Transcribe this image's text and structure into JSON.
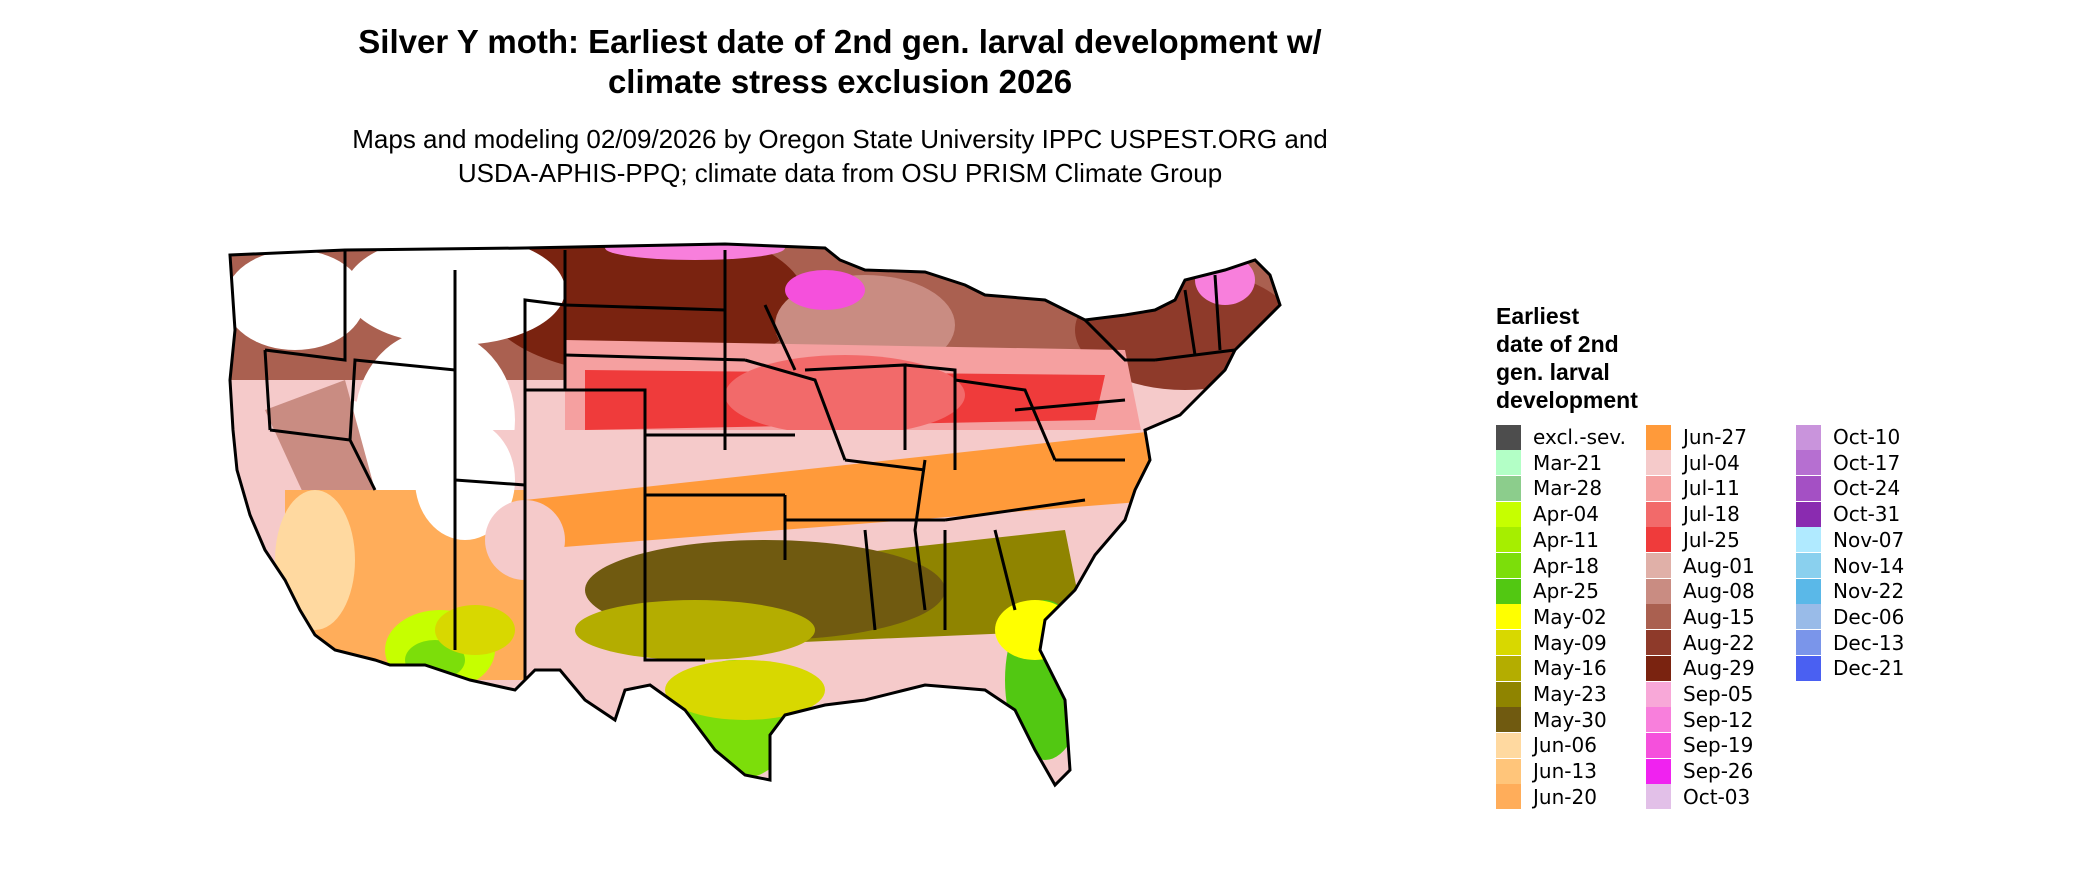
{
  "title_line1": "Silver Y moth: Earliest date of 2nd gen. larval development w/",
  "title_line2": "climate stress exclusion 2026",
  "subtitle_line1": "Maps and modeling 02/09/2026 by Oregon State University IPPC USPEST.ORG and",
  "subtitle_line2": "USDA-APHIS-PPQ; climate data from OSU PRISM Climate Group",
  "legend": {
    "title_lines": [
      "Earliest",
      "date of 2nd",
      "gen. larval",
      "development"
    ],
    "items": [
      {
        "label": "excl.-sev.",
        "color": "#4d4d4d"
      },
      {
        "label": "Mar-21",
        "color": "#b3ffc6"
      },
      {
        "label": "Mar-28",
        "color": "#8ccd8c"
      },
      {
        "label": "Apr-04",
        "color": "#c6ff00"
      },
      {
        "label": "Apr-11",
        "color": "#a6ee00"
      },
      {
        "label": "Apr-18",
        "color": "#7cde0a"
      },
      {
        "label": "Apr-25",
        "color": "#52c812"
      },
      {
        "label": "May-02",
        "color": "#ffff00"
      },
      {
        "label": "May-09",
        "color": "#d8d800"
      },
      {
        "label": "May-16",
        "color": "#b4ad00"
      },
      {
        "label": "May-23",
        "color": "#8f8400"
      },
      {
        "label": "May-30",
        "color": "#705a10"
      },
      {
        "label": "Jun-06",
        "color": "#ffd9a0"
      },
      {
        "label": "Jun-13",
        "color": "#ffc57a"
      },
      {
        "label": "Jun-20",
        "color": "#ffad5a"
      },
      {
        "label": "Jun-27",
        "color": "#ff9a3a"
      },
      {
        "label": "Jul-04",
        "color": "#f5caca"
      },
      {
        "label": "Jul-11",
        "color": "#f5a0a0"
      },
      {
        "label": "Jul-18",
        "color": "#f26a6a"
      },
      {
        "label": "Jul-25",
        "color": "#ef3b3b"
      },
      {
        "label": "Aug-01",
        "color": "#e0b0a8"
      },
      {
        "label": "Aug-08",
        "color": "#c98c82"
      },
      {
        "label": "Aug-15",
        "color": "#aa6050"
      },
      {
        "label": "Aug-22",
        "color": "#8e3a2a"
      },
      {
        "label": "Aug-29",
        "color": "#7a2310"
      },
      {
        "label": "Sep-05",
        "color": "#f8a8d8"
      },
      {
        "label": "Sep-12",
        "color": "#f87fdc"
      },
      {
        "label": "Sep-19",
        "color": "#f550dc"
      },
      {
        "label": "Sep-26",
        "color": "#f022f0"
      },
      {
        "label": "Oct-03",
        "color": "#e2c0e8"
      },
      {
        "label": "Oct-10",
        "color": "#c994dc"
      },
      {
        "label": "Oct-17",
        "color": "#b66fd1"
      },
      {
        "label": "Oct-24",
        "color": "#a450c4"
      },
      {
        "label": "Oct-31",
        "color": "#8a2bb0"
      },
      {
        "label": "Nov-07",
        "color": "#b0eaff"
      },
      {
        "label": "Nov-14",
        "color": "#8ad0ee"
      },
      {
        "label": "Nov-22",
        "color": "#5ab8e8"
      },
      {
        "label": "Dec-06",
        "color": "#99bbe8"
      },
      {
        "label": "Dec-13",
        "color": "#7a95ea"
      },
      {
        "label": "Dec-21",
        "color": "#4a60f2"
      }
    ]
  }
}
